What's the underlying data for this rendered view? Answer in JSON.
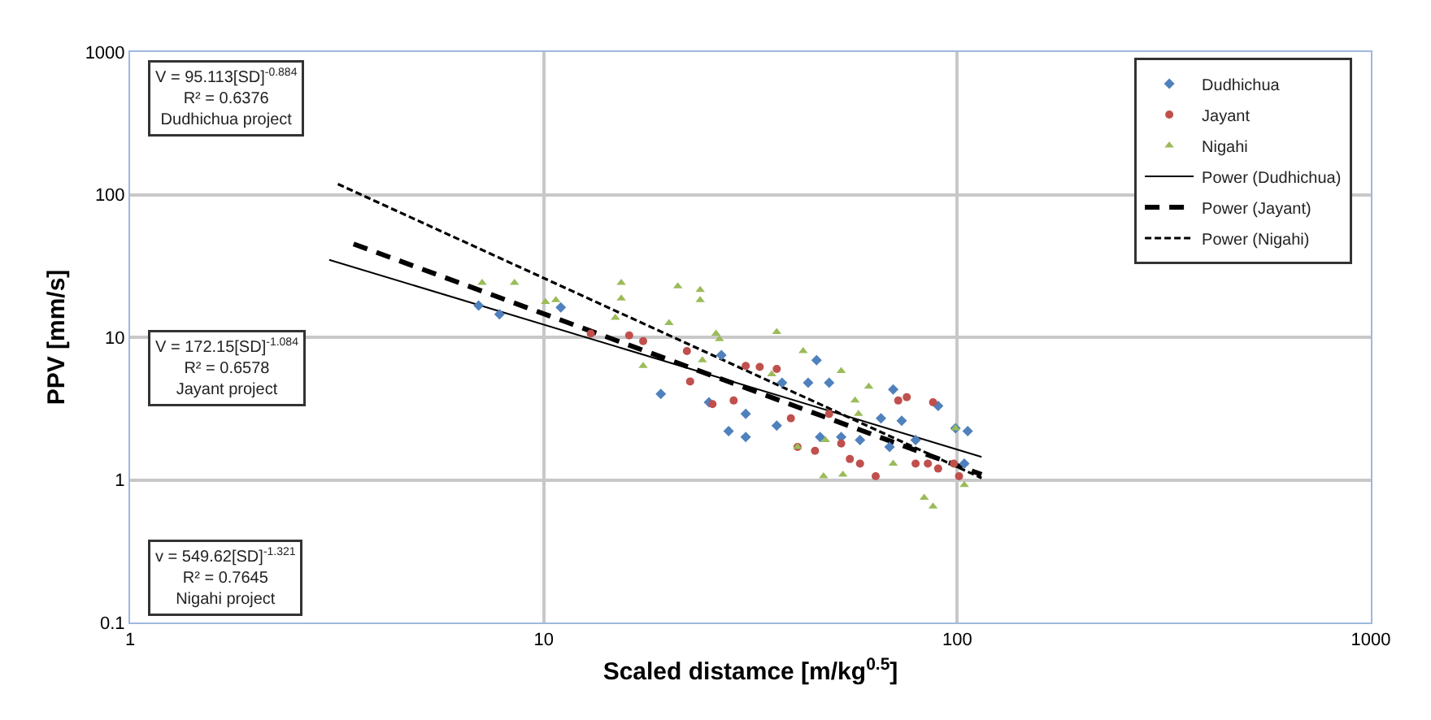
{
  "chart_data": {
    "type": "scatter",
    "xlabel": "Scaled distamce [m/kg$^{0.5}$]",
    "ylabel": "PPV [mm/s]",
    "log": "xy",
    "xlim": [
      1,
      1000
    ],
    "ylim": [
      0.1,
      1000
    ],
    "xticks": [
      1,
      10,
      100,
      1000
    ],
    "yticks": [
      0.1,
      1,
      10,
      100,
      1000
    ],
    "grid": true,
    "legend": "top right",
    "annotations": [
      "V = 95.113[SD]$^{-0.884}$\nR² = 0.6376\nDudhichua project",
      "V = 172.15[SD]$^{-1.084}$\nR² = 0.6578\nJayant project",
      "v = 549.62[SD]$^{-1.321}$\nR² = 0.7645\nNigahi project"
    ],
    "series": [
      {
        "name": "Dudhichua",
        "color": "#4f81bd",
        "marker": "diamond",
        "x": [
          6.96,
          7.82,
          11.0,
          19.2,
          26.9,
          25.1,
          28.0,
          30.8,
          30.8,
          36.6,
          37.7,
          43.6,
          45.7,
          49.0,
          46.6,
          52.4,
          58.2,
          65.4,
          70.0,
          73.4,
          79.3,
          89.9,
          99,
          106,
          104,
          68.6
        ],
        "values": [
          16.7,
          14.5,
          16.2,
          4.0,
          7.5,
          3.5,
          2.2,
          2.0,
          2.9,
          2.4,
          4.8,
          4.8,
          6.9,
          4.8,
          2.0,
          2.0,
          1.9,
          2.7,
          4.3,
          2.6,
          1.9,
          3.3,
          2.3,
          2.2,
          1.3,
          1.7
        ]
      },
      {
        "name": "Jayant",
        "color": "#c0504d",
        "marker": "circle",
        "x": [
          13.0,
          16.1,
          17.4,
          22.2,
          22.6,
          25.6,
          28.8,
          30.8,
          33.3,
          36.6,
          41.1,
          45.3,
          52.4,
          55.0,
          58.2,
          63.5,
          72.0,
          75.5,
          87.4,
          79.3,
          84.9,
          89.9,
          98.1,
          49.0,
          39.6,
          101
        ],
        "values": [
          10.6,
          10.3,
          9.4,
          8.0,
          4.9,
          3.4,
          3.6,
          6.3,
          6.2,
          6.0,
          1.7,
          1.6,
          1.8,
          1.4,
          1.3,
          1.06,
          3.6,
          3.8,
          3.5,
          1.3,
          1.3,
          1.2,
          1.3,
          2.9,
          2.7,
          1.06
        ]
      },
      {
        "name": "Nigahi",
        "color": "#9bbb59",
        "marker": "triangle",
        "x": [
          7.1,
          8.5,
          10.1,
          10.7,
          15.4,
          15.4,
          14.9,
          21.1,
          23.9,
          23.9,
          20.1,
          26.1,
          26.6,
          24.2,
          17.4,
          36.6,
          42.4,
          35.6,
          52.4,
          56.6,
          57.7,
          61.1,
          48.0,
          47.5,
          52.9,
          70.0,
          83.2,
          87.4,
          99,
          104,
          41.1
        ],
        "values": [
          24.1,
          24.1,
          17.7,
          18.2,
          24.1,
          18.7,
          13.7,
          22.8,
          21.5,
          18.2,
          12.6,
          10.6,
          9.7,
          6.9,
          6.3,
          10.9,
          8.0,
          5.5,
          5.8,
          3.6,
          2.9,
          4.5,
          1.9,
          1.06,
          1.09,
          1.3,
          0.75,
          0.65,
          2.3,
          0.92,
          1.7
        ]
      },
      {
        "name": "Power (Dudhichua)",
        "type": "line",
        "color": "#000000",
        "line_style": "solid",
        "x": [
          3.03,
          114.5
        ],
        "values": [
          34.9,
          1.45
        ]
      },
      {
        "name": "Power (Jayant)",
        "type": "line",
        "color": "#000000",
        "line_style": "dashed",
        "x": [
          3.47,
          114.5
        ],
        "values": [
          45.1,
          1.09
        ]
      },
      {
        "name": "Power (Nigahi)",
        "type": "line",
        "color": "#000000",
        "line_style": "dashed",
        "x": [
          3.18,
          114.5
        ],
        "values": [
          118.6,
          1.03
        ]
      }
    ]
  }
}
